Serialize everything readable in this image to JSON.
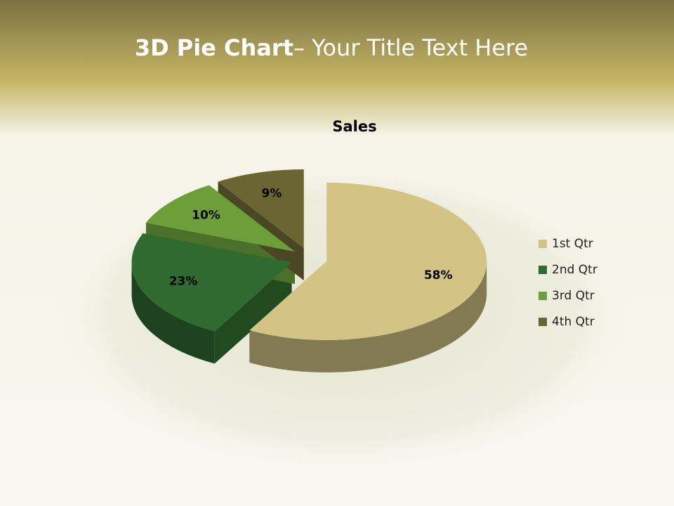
{
  "slide": {
    "title_bold": "3D Pie Chart",
    "title_rest": "– Your Title Text Here"
  },
  "chart_data": {
    "type": "pie",
    "title": "Sales",
    "categories": [
      "1st Qtr",
      "2nd Qtr",
      "3rd Qtr",
      "4th Qtr"
    ],
    "values": [
      58,
      23,
      10,
      9
    ],
    "value_labels": [
      "58%",
      "23%",
      "10%",
      "9%"
    ],
    "colors": [
      "#d3c486",
      "#2f6a2f",
      "#6c9e3a",
      "#6b6534"
    ],
    "legend": "right"
  }
}
